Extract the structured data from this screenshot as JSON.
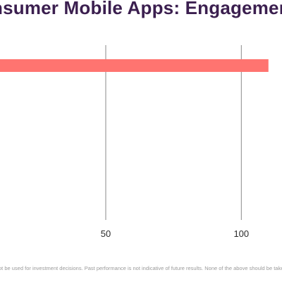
{
  "title": "nsumer Mobile Apps: Engagemen",
  "disclaimer": "ot be used for investment decisions. Past performance is not indicative of future results. None of the above should be take",
  "colors": {
    "bar": "#ff7470",
    "title": "#3b1f4f",
    "gridline": "#8a8a8a",
    "disclaimer": "#9a9a9a"
  },
  "chart_data": {
    "type": "bar",
    "orientation": "horizontal",
    "title": "nsumer Mobile Apps: Engagemen",
    "xlabel": "",
    "ylabel": "",
    "categories": [
      ""
    ],
    "values": [
      110
    ],
    "xticks": [
      50,
      100
    ],
    "tick_labels": [
      "50",
      "100"
    ],
    "xlim": [
      11,
      115
    ],
    "grid": true,
    "legend": "none"
  }
}
